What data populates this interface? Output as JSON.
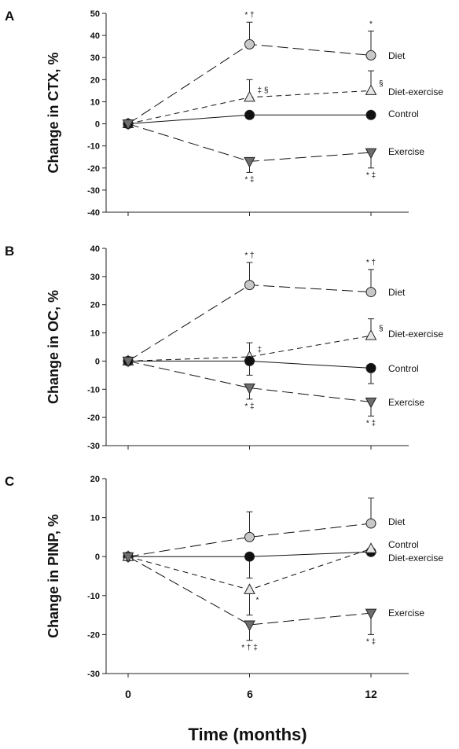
{
  "figure": {
    "x_title": "Time (months)",
    "x_ticks": [
      "0",
      "6",
      "12"
    ]
  },
  "chart_data": [
    {
      "type": "line",
      "panel_letter": "A",
      "ylabel": "Change in CTX, %",
      "ylim": [
        -40,
        50
      ],
      "yticks": [
        -40,
        -30,
        -20,
        -10,
        0,
        10,
        20,
        30,
        40,
        50
      ],
      "x": [
        0,
        6,
        12
      ],
      "series": [
        {
          "name": "Diet",
          "marker": "circle",
          "fill": "#c8c8c8",
          "line": "longdash",
          "values": [
            0,
            36,
            31
          ],
          "err": [
            null,
            10,
            11
          ],
          "err_dir": "up",
          "annotations": [
            null,
            "* †",
            "*"
          ]
        },
        {
          "name": "Diet-exercise",
          "marker": "triangle-up",
          "fill": "#e6e6e6",
          "line": "shortdash",
          "values": [
            0,
            12,
            15
          ],
          "err": [
            null,
            8,
            9
          ],
          "err_dir": "up",
          "annotations": [
            null,
            "‡ §",
            "§"
          ]
        },
        {
          "name": "Control",
          "marker": "circle",
          "fill": "#111111",
          "line": "solid",
          "values": [
            0,
            4,
            4
          ],
          "err": [
            null,
            null,
            null
          ],
          "err_dir": "up",
          "annotations": [
            null,
            null,
            null
          ]
        },
        {
          "name": "Exercise",
          "marker": "triangle-down",
          "fill": "#6e6e6e",
          "line": "longdash",
          "values": [
            0,
            -17,
            -13
          ],
          "err": [
            null,
            5,
            7
          ],
          "err_dir": "down",
          "annotations": [
            null,
            "* ‡",
            "* ‡"
          ]
        }
      ]
    },
    {
      "type": "line",
      "panel_letter": "B",
      "ylabel": "Change in OC, %",
      "ylim": [
        -30,
        40
      ],
      "yticks": [
        -30,
        -20,
        -10,
        0,
        10,
        20,
        30,
        40
      ],
      "x": [
        0,
        6,
        12
      ],
      "series": [
        {
          "name": "Diet",
          "marker": "circle",
          "fill": "#c8c8c8",
          "line": "longdash",
          "values": [
            0,
            27,
            24.5
          ],
          "err": [
            null,
            8,
            8
          ],
          "err_dir": "up",
          "annotations": [
            null,
            "* †",
            "* †"
          ]
        },
        {
          "name": "Diet-exercise",
          "marker": "triangle-up",
          "fill": "#e6e6e6",
          "line": "shortdash",
          "values": [
            0,
            1.5,
            9
          ],
          "err": [
            null,
            5,
            6
          ],
          "err_dir": "up",
          "annotations": [
            null,
            "‡",
            "§"
          ]
        },
        {
          "name": "Control",
          "marker": "circle",
          "fill": "#111111",
          "line": "solid",
          "values": [
            0,
            0,
            -2.5
          ],
          "err": [
            null,
            5,
            5.5
          ],
          "err_dir": "down",
          "annotations": [
            null,
            null,
            null
          ]
        },
        {
          "name": "Exercise",
          "marker": "triangle-down",
          "fill": "#6e6e6e",
          "line": "longdash",
          "values": [
            0,
            -9.5,
            -14.5
          ],
          "err": [
            null,
            4,
            5
          ],
          "err_dir": "down",
          "annotations": [
            null,
            "* ‡",
            "* ‡"
          ]
        }
      ]
    },
    {
      "type": "line",
      "panel_letter": "C",
      "ylabel": "Change in PINP, %",
      "ylim": [
        -30,
        20
      ],
      "yticks": [
        -30,
        -20,
        -10,
        0,
        10,
        20
      ],
      "x": [
        0,
        6,
        12
      ],
      "series": [
        {
          "name": "Diet",
          "marker": "circle",
          "fill": "#c8c8c8",
          "line": "longdash",
          "values": [
            0,
            5,
            8.5
          ],
          "err": [
            null,
            6.5,
            6.5
          ],
          "err_dir": "up",
          "annotations": [
            null,
            null,
            null
          ]
        },
        {
          "name": "Control",
          "marker": "circle",
          "fill": "#111111",
          "line": "solid",
          "values": [
            0,
            0,
            1.2
          ],
          "err": [
            null,
            5.5,
            null
          ],
          "err_dir": "down",
          "annotations": [
            null,
            null,
            null
          ]
        },
        {
          "name": "Diet-exercise",
          "marker": "triangle-up",
          "fill": "#e6e6e6",
          "line": "shortdash",
          "values": [
            0,
            -8.5,
            2
          ],
          "err": [
            null,
            6.5,
            null
          ],
          "err_dir": "down",
          "annotations": [
            null,
            "*",
            null
          ]
        },
        {
          "name": "Exercise",
          "marker": "triangle-down",
          "fill": "#6e6e6e",
          "line": "longdash",
          "values": [
            0,
            -17.5,
            -14.5
          ],
          "err": [
            null,
            4,
            5.5
          ],
          "err_dir": "down",
          "annotations": [
            null,
            "* † ‡",
            "* ‡"
          ]
        }
      ]
    }
  ]
}
